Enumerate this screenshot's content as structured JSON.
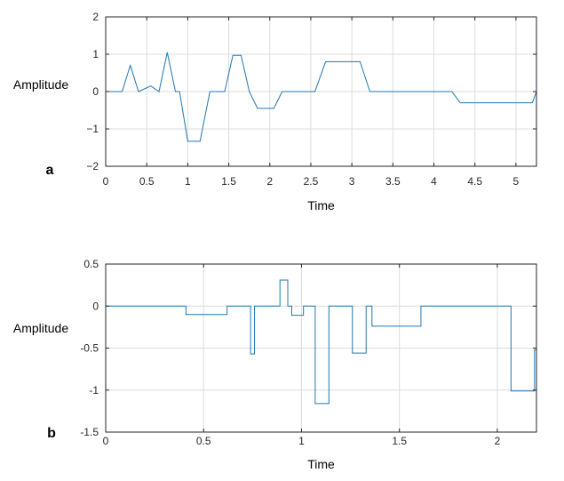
{
  "chart_data": [
    {
      "type": "line",
      "panel_label": "a",
      "xlabel": "Time",
      "ylabel": "Amplitude",
      "xlim": [
        0,
        5.25
      ],
      "ylim": [
        -2,
        2
      ],
      "xticks": [
        "0",
        "0.5",
        "1",
        "1.5",
        "2",
        "2.5",
        "3",
        "3.5",
        "4",
        "4.5",
        "5"
      ],
      "yticks": [
        "2",
        "1",
        "0",
        "−1",
        "−2"
      ],
      "grid": true,
      "line_color": "#1f77b4",
      "series": [
        {
          "x": [
            0,
            0.2,
            0.3,
            0.4,
            0.55,
            0.65,
            0.75,
            0.85,
            0.9,
            1.0,
            1.15,
            1.27,
            1.45,
            1.55,
            1.65,
            1.75,
            1.85,
            2.05,
            2.15,
            2.55,
            2.68,
            3.1,
            3.22,
            4.22,
            4.32,
            5.2,
            5.25
          ],
          "y": [
            0,
            0,
            0.7,
            0,
            0.15,
            0,
            1.05,
            0,
            0,
            -1.33,
            -1.33,
            0,
            0,
            0.97,
            0.97,
            0,
            -0.45,
            -0.45,
            0,
            0,
            0.8,
            0.8,
            0,
            0,
            -0.3,
            -0.3,
            0
          ]
        }
      ]
    },
    {
      "type": "line",
      "panel_label": "b",
      "xlabel": "Time",
      "ylabel": "Amplitude",
      "xlim": [
        0,
        2.2
      ],
      "ylim": [
        -1.5,
        0.5
      ],
      "xticks": [
        "0",
        "0.5",
        "1",
        "1.5",
        "2"
      ],
      "yticks": [
        "0.5",
        "0",
        "-0.5",
        "-1",
        "-1.5"
      ],
      "grid": true,
      "line_color": "#1f77b4",
      "series": [
        {
          "x": [
            0,
            0.41,
            0.41,
            0.62,
            0.62,
            0.74,
            0.74,
            0.76,
            0.76,
            0.89,
            0.89,
            0.93,
            0.93,
            0.95,
            0.95,
            1.01,
            1.01,
            1.07,
            1.07,
            1.14,
            1.14,
            1.26,
            1.26,
            1.33,
            1.33,
            1.36,
            1.36,
            1.61,
            1.61,
            2.07,
            2.07,
            2.19,
            2.19,
            2.2
          ],
          "y": [
            0,
            0,
            -0.1,
            -0.1,
            0,
            0,
            -0.57,
            -0.57,
            0,
            0,
            0.31,
            0.31,
            0,
            0,
            -0.11,
            -0.11,
            0,
            0,
            -1.16,
            -1.16,
            0,
            0,
            -0.56,
            -0.56,
            0,
            0,
            -0.24,
            -0.24,
            0,
            0,
            -1.01,
            -1.01,
            -0.52,
            -0.52
          ]
        }
      ]
    }
  ]
}
